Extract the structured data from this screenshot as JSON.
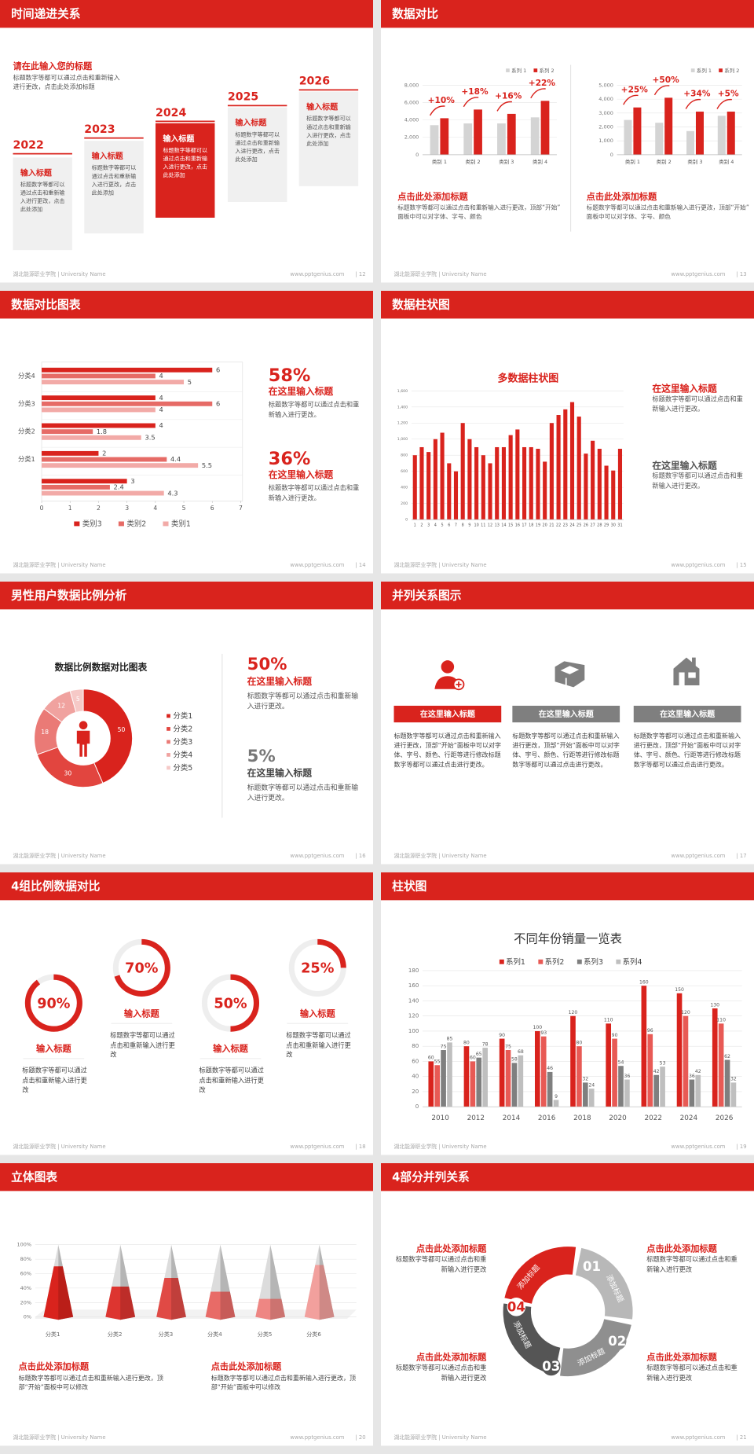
{
  "slides": [
    {
      "title": "时间递进关系",
      "heading": "请在此输入您的标题",
      "desc": "标题数字等都可以通过点击和重新输入进行更改，点击此处添加标题",
      "steps": [
        {
          "year": "2022",
          "label": "输入标题",
          "text": "标题数字等都可以通过点击和重新输入进行更改，点击此处添加"
        },
        {
          "year": "2023",
          "label": "输入标题",
          "text": "标题数字等都可以通过点击和重新输入进行更改，点击此处添加"
        },
        {
          "year": "2024",
          "label": "输入标题",
          "text": "标题数字等都可以通过点击和重新输入进行更改，点击此处添加"
        },
        {
          "year": "2025",
          "label": "输入标题",
          "text": "标题数字等都可以通过点击和重新输入进行更改，点击此处添加"
        },
        {
          "year": "2026",
          "label": "输入标题",
          "text": "标题数字等都可以通过点击和重新输入进行更改，点击此处添加"
        }
      ],
      "footer": "湖北能源职业学院 | University Name",
      "url": "www.pptgenius.com",
      "page": "| 12"
    },
    {
      "title": "数据对比",
      "charts": [
        {
          "type": "bar",
          "categories": [
            "类别 1",
            "类别 2",
            "类别 3",
            "类别 4"
          ],
          "series": [
            {
              "name": "系列 1",
              "color": "#d4d4d4",
              "values": [
                3400,
                3600,
                3600,
                4300
              ]
            },
            {
              "name": "系列 2",
              "color": "#d9231d",
              "values": [
                4200,
                5200,
                4700,
                6200
              ]
            }
          ],
          "ylim": [
            0,
            8000
          ],
          "yticks": [
            0,
            {
              "value": 2000,
              "label": "2,000"
            },
            {
              "value": 4000,
              "label": "4,000"
            },
            {
              "value": 6000,
              "label": "6,000"
            },
            {
              "value": 8000,
              "label": "8,000"
            }
          ],
          "annotations": [
            "+10%",
            "+18%",
            "+16%",
            "+22%"
          ],
          "caption": "点击此处添加标题",
          "text": "标题数字等都可以通过点击和重新输入进行更改，顶部“开始”面板中可以对字体、字号、颜色"
        },
        {
          "type": "bar",
          "categories": [
            "类别 1",
            "类别 2",
            "类别 3",
            "类别 4"
          ],
          "series": [
            {
              "name": "系列 1",
              "color": "#d4d4d4",
              "values": [
                2500,
                2300,
                1700,
                2800
              ]
            },
            {
              "name": "系列 2",
              "color": "#d9231d",
              "values": [
                3400,
                4100,
                3100,
                3100
              ]
            }
          ],
          "ylim": [
            0,
            5000
          ],
          "yticks": [
            0,
            {
              "value": 1000,
              "label": "1,000"
            },
            {
              "value": 2000,
              "label": "2,000"
            },
            {
              "value": 3000,
              "label": "3,000"
            },
            {
              "value": 4000,
              "label": "4,000"
            },
            {
              "value": 5000,
              "label": "5,000"
            }
          ],
          "annotations": [
            "+25%",
            "+50%",
            "+34%",
            "+5%"
          ],
          "caption": "点击此处添加标题",
          "text": "标题数字等都可以通过点击和重新输入进行更改，顶部“开始”面板中可以对字体、字号、颜色"
        }
      ],
      "footer": "湖北能源职业学院 | University Name",
      "url": "www.pptgenius.com",
      "page": "| 13"
    },
    {
      "title": "数据对比图表",
      "chart": {
        "type": "hbar",
        "categories": [
          "分类4",
          "分类3",
          "分类2",
          "分类1",
          null
        ],
        "series": [
          {
            "name": "类别3",
            "color": "#d9231d",
            "values": [
              6,
              4,
              4,
              2,
              3
            ]
          },
          {
            "name": "类别2",
            "color": "#e66b66",
            "values": [
              4,
              6,
              1.8,
              4.4,
              2.4
            ]
          },
          {
            "name": "类别1",
            "color": "#f2aaa7",
            "values": [
              5,
              4,
              3.5,
              5.5,
              4.3
            ]
          }
        ],
        "xlim": [
          0,
          7
        ],
        "xticks": [
          0,
          1,
          2,
          3,
          4,
          5,
          6,
          7
        ]
      },
      "stats": [
        {
          "value": "58%",
          "title": "在这里输入标题",
          "text": "标题数字等都可以通过点击和重新输入进行更改。"
        },
        {
          "value": "36%",
          "title": "在这里输入标题",
          "text": "标题数字等都可以通过点击和重新输入进行更改。"
        }
      ],
      "footer": "湖北能源职业学院 | University Name",
      "url": "www.pptgenius.com",
      "page": "| 14"
    },
    {
      "title": "数据柱状图",
      "chart": {
        "type": "bar",
        "title": "多数据柱状图",
        "categories": [
          1,
          2,
          3,
          4,
          5,
          6,
          7,
          8,
          9,
          10,
          11,
          12,
          13,
          14,
          15,
          16,
          17,
          18,
          19,
          20,
          21,
          22,
          23,
          24,
          25,
          26,
          27,
          28,
          29,
          30,
          31
        ],
        "values": [
          800,
          900,
          840,
          1000,
          1080,
          700,
          600,
          1200,
          1000,
          900,
          800,
          700,
          900,
          900,
          1050,
          1120,
          900,
          900,
          880,
          720,
          1200,
          1300,
          1370,
          1460,
          1280,
          820,
          980,
          880,
          670,
          610,
          880
        ],
        "color": "#d9231d",
        "ylim": [
          0,
          1600
        ],
        "yticks": [
          0,
          200,
          400,
          600,
          800,
          {
            "value": 1000,
            "label": "1,000"
          },
          {
            "value": 1200,
            "label": "1,200"
          },
          {
            "value": 1400,
            "label": "1,400"
          },
          {
            "value": 1600,
            "label": "1,600"
          }
        ]
      },
      "blocks": [
        {
          "title": "在这里输入标题",
          "text": "标题数字等都可以通过点击和重新输入进行更改。"
        },
        {
          "title": "在这里输入标题",
          "text": "标题数字等都可以通过点击和重新输入进行更改。"
        }
      ],
      "footer": "湖北能源职业学院 | University Name",
      "url": "www.pptgenius.com",
      "page": "| 15"
    },
    {
      "title": "男性用户数据比例分析",
      "chart": {
        "type": "pie",
        "title": "数据比例数据对比图表",
        "categories": [
          "分类1",
          "分类2",
          "分类3",
          "分类4",
          "分类5"
        ],
        "values": [
          50,
          30,
          18,
          12,
          5
        ],
        "colors": [
          "#d9231d",
          "#e2453f",
          "#ea7a76",
          "#f0a29f",
          "#f6c9c7"
        ]
      },
      "stats": [
        {
          "value": "50%",
          "title": "在这里输入标题",
          "text": "标题数字等都可以通过点击和重新输入进行更改。"
        },
        {
          "value": "5%",
          "title": "在这里输入标题",
          "text": "标题数字等都可以通过点击和重新输入进行更改。"
        }
      ],
      "footer": "湖北能源职业学院 | University Name",
      "url": "www.pptgenius.com",
      "page": "| 16"
    },
    {
      "title": "并列关系图示",
      "items": [
        {
          "button": "在这里输入标题",
          "text": "标题数字等都可以通过点击和重新输入进行更改，顶部“开始”面板中可以对字体、字号、颜色、行距等进行修改标题数字等都可以通过点击进行更改。"
        },
        {
          "button": "在这里输入标题",
          "text": "标题数字等都可以通过点击和重新输入进行更改，顶部“开始”面板中可以对字体、字号、颜色、行距等进行修改标题数字等都可以通过点击进行更改。"
        },
        {
          "button": "在这里输入标题",
          "text": "标题数字等都可以通过点击和重新输入进行更改，顶部“开始”面板中可以对字体、字号、颜色、行距等进行修改标题数字等都可以通过点击进行更改。"
        }
      ],
      "footer": "湖北能源职业学院 | University Name",
      "url": "www.pptgenius.com",
      "page": "| 17"
    },
    {
      "title": "4组比例数据对比",
      "rings": [
        {
          "value": 90,
          "value_label": "90%",
          "label": "输入标题",
          "text": "标题数字等都可以通过点击和重新输入进行更改"
        },
        {
          "value": 70,
          "value_label": "70%",
          "label": "输入标题",
          "text": "标题数字等都可以通过点击和重新输入进行更改"
        },
        {
          "value": 50,
          "value_label": "50%",
          "label": "输入标题",
          "text": "标题数字等都可以通过点击和重新输入进行更改"
        },
        {
          "value": 25,
          "value_label": "25%",
          "label": "输入标题",
          "text": "标题数字等都可以通过点击和重新输入进行更改"
        }
      ],
      "footer": "湖北能源职业学院 | University Name",
      "url": "www.pptgenius.com",
      "page": "| 18"
    },
    {
      "title": "柱状图",
      "chart": {
        "type": "bar",
        "title": "不同年份销量一览表",
        "categories": [
          "2010",
          "2012",
          "2014",
          "2016",
          "2018",
          "2020",
          "2022",
          "2024",
          "2026"
        ],
        "series": [
          {
            "name": "系列1",
            "color": "#d9231d",
            "values": [
              60,
              80,
              90,
              100,
              120,
              110,
              160,
              150,
              130
            ]
          },
          {
            "name": "系列2",
            "color": "#e85a55",
            "values": [
              55,
              60,
              75,
              93,
              80,
              90,
              96,
              120,
              110
            ]
          },
          {
            "name": "系列3",
            "color": "#7f7f7f",
            "values": [
              75,
              65,
              58,
              46,
              32,
              54,
              42,
              36,
              62
            ]
          },
          {
            "name": "系列4",
            "color": "#bfbfbf",
            "values": [
              85,
              78,
              68,
              9,
              24,
              36,
              53,
              42,
              32
            ]
          }
        ],
        "ylim": [
          0,
          180
        ],
        "yticks": [
          0,
          20,
          40,
          60,
          80,
          100,
          120,
          140,
          160,
          180
        ],
        "grid": true
      },
      "footer": "湖北能源职业学院 | University Name",
      "url": "www.pptgenius.com",
      "page": "| 19"
    },
    {
      "title": "立体图表",
      "chart": {
        "type": "pyramid",
        "categories": [
          "分类1",
          "分类2",
          "分类3",
          "分类4",
          "分类5",
          "分类6"
        ],
        "values": [
          70,
          42,
          54,
          35,
          25,
          72
        ],
        "colors": [
          "#d9231d",
          "#dd3530",
          "#e04a45",
          "#e86b67",
          "#ee8683",
          "#f2a09d"
        ],
        "ylim": [
          0,
          100
        ],
        "yticks": [
          {
            "value": 0,
            "label": "0%"
          },
          {
            "value": 20,
            "label": "20%"
          },
          {
            "value": 40,
            "label": "40%"
          },
          {
            "value": 60,
            "label": "60%"
          },
          {
            "value": 80,
            "label": "80%"
          },
          {
            "value": 100,
            "label": "100%"
          }
        ]
      },
      "blocks": [
        {
          "title": "点击此处添加标题",
          "text": "标题数字等都可以通过点击和重新输入进行更改，顶部“开始”面板中可以修改"
        },
        {
          "title": "点击此处添加标题",
          "text": "标题数字等都可以通过点击和重新输入进行更改，顶部“开始”面板中可以修改"
        }
      ],
      "footer": "湖北能源职业学院 | University Name",
      "url": "www.pptgenius.com",
      "page": "| 20"
    },
    {
      "title": "4部分并列关系",
      "parts": [
        {
          "number": "01",
          "label": "添加标题"
        },
        {
          "number": "02",
          "label": "添加标题"
        },
        {
          "number": "03",
          "label": "添加标题"
        },
        {
          "number": "04",
          "label": "添加标题"
        }
      ],
      "blocks": [
        {
          "title": "点击此处添加标题",
          "text": "标题数字等都可以通过点击和重新输入进行更改"
        },
        {
          "title": "点击此处添加标题",
          "text": "标题数字等都可以通过点击和重新输入进行更改"
        },
        {
          "title": "点击此处添加标题",
          "text": "标题数字等都可以通过点击和重新输入进行更改"
        },
        {
          "title": "点击此处添加标题",
          "text": "标题数字等都可以通过点击和重新输入进行更改"
        }
      ],
      "footer": "湖北能源职业学院 | University Name",
      "url": "www.pptgenius.com",
      "page": "| 21"
    }
  ]
}
